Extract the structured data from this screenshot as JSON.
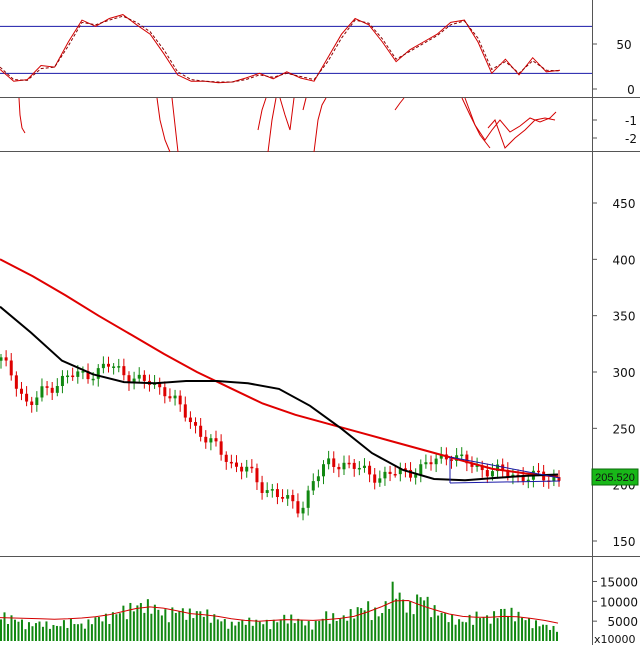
{
  "chart_data": [
    {
      "type": "line",
      "panel": "stochastic-oscillator",
      "ylim": [
        0,
        100
      ],
      "y_ticks": [
        "50",
        "0"
      ],
      "reference_lines": [
        80,
        20
      ],
      "colors": {
        "k": "#d40000",
        "d": "#8b0000",
        "ref": "#1a1aa8"
      },
      "series": [
        {
          "values": [
            25,
            10,
            12,
            30,
            28,
            60,
            88,
            80,
            90,
            95,
            82,
            70,
            45,
            18,
            10,
            10,
            8,
            9,
            14,
            20,
            13,
            22,
            14,
            10,
            40,
            70,
            90,
            82,
            60,
            35,
            50,
            60,
            70,
            85,
            88,
            60,
            20,
            38,
            18,
            40,
            22,
            24
          ]
        },
        {
          "values": [
            28,
            12,
            11,
            26,
            28,
            55,
            85,
            82,
            88,
            93,
            85,
            73,
            50,
            22,
            12,
            10,
            9,
            9,
            12,
            18,
            15,
            20,
            16,
            12,
            35,
            65,
            88,
            84,
            64,
            38,
            48,
            58,
            68,
            82,
            87,
            65,
            25,
            35,
            20,
            36,
            24,
            23
          ]
        }
      ]
    },
    {
      "type": "line",
      "panel": "momentum-oscillator",
      "ylim": [
        -2.5,
        0.5
      ],
      "y_ticks": [
        "-1",
        "-2"
      ],
      "color": "#d40000"
    },
    {
      "type": "bar",
      "panel": "price",
      "ylim": [
        130,
        500
      ],
      "y_ticks": [
        "450",
        "400",
        "350",
        "300",
        "250",
        "200",
        "150"
      ],
      "last_price_label": "205.520",
      "colors": {
        "up": "#118811",
        "down": "#dd0000",
        "ma_long": "#e00000",
        "ma_mid": "#000000",
        "triangle": "#1a1aa8"
      },
      "ma_long": [
        400,
        385,
        368,
        350,
        333,
        316,
        300,
        286,
        272,
        262,
        254,
        246,
        238,
        230,
        222,
        214,
        210,
        207
      ],
      "ma_mid": [
        358,
        335,
        310,
        298,
        291,
        290,
        292,
        292,
        290,
        285,
        270,
        250,
        228,
        213,
        205,
        204,
        206,
        208,
        209
      ],
      "close": [
        310,
        295,
        268,
        282,
        290,
        296,
        298,
        300,
        306,
        300,
        292,
        290,
        285,
        270,
        255,
        242,
        230,
        218,
        215,
        198,
        195,
        185,
        178,
        205,
        218,
        220,
        215,
        210,
        207,
        210,
        212,
        215,
        222,
        228,
        220,
        215,
        213,
        210,
        208,
        207,
        206,
        205.52
      ]
    },
    {
      "type": "bar",
      "panel": "volume",
      "unit_label": "x10000",
      "ylim": [
        0,
        20000
      ],
      "y_ticks": [
        "15000",
        "10000",
        "5000"
      ],
      "colors": {
        "bar": "#118811",
        "ma": "#d40000"
      },
      "values": [
        6000,
        5200,
        3800,
        4300,
        3300,
        4800,
        3600,
        5300,
        5600,
        7300,
        8100,
        8500,
        6400,
        7200,
        6500,
        6700,
        5200,
        3900,
        4800,
        4500,
        4200,
        5700,
        4800,
        3700,
        6200,
        5100,
        6800,
        8300,
        5900,
        12800,
        7400,
        10800,
        7200,
        5600,
        4400,
        6100,
        5300,
        7300,
        6400,
        4600,
        3700,
        2800
      ],
      "ma": [
        5900,
        5800,
        5700,
        5600,
        5500,
        5600,
        5800,
        6100,
        6600,
        7400,
        8200,
        8600,
        8300,
        7600,
        6900,
        6600,
        6200,
        5600,
        5200,
        5000,
        5200,
        5400,
        5300,
        5200,
        5400,
        5700,
        6200,
        7300,
        8600,
        10100,
        10200,
        8900,
        7800,
        6800,
        6200,
        6000,
        6000,
        6200,
        6100,
        5700,
        5200,
        4500
      ]
    }
  ]
}
